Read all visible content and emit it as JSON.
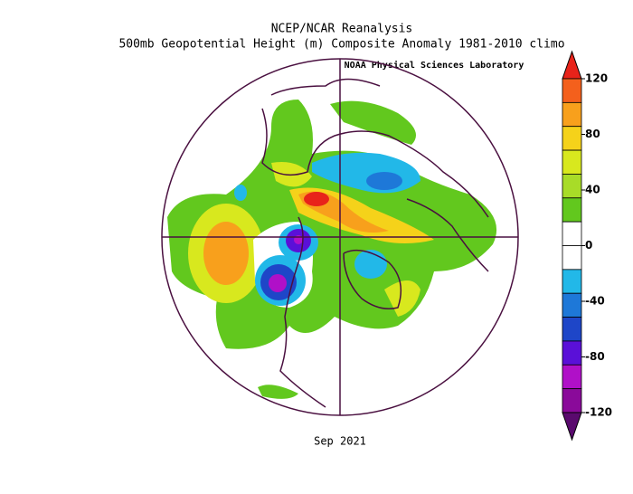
{
  "header": {
    "title": "NCEP/NCAR Reanalysis",
    "subtitle": "500mb Geopotential Height (m) Composite Anomaly 1981-2010 climo",
    "source": "NOAA Physical Sciences Laboratory"
  },
  "map": {
    "date": "Sep 2021"
  },
  "colorbar": {
    "ticks": [
      120,
      80,
      40,
      0,
      -40,
      -80,
      -120
    ],
    "colors": [
      "#e8231a",
      "#f4601c",
      "#f8a01c",
      "#f5d21a",
      "#d8e81e",
      "#a8dc28",
      "#62c81e",
      "#ffffff",
      "#ffffff",
      "#22b8e8",
      "#1e78d8",
      "#1e46c8",
      "#5a10d8",
      "#b010c8",
      "#8a0a9a",
      "#5a0a6e"
    ]
  }
}
